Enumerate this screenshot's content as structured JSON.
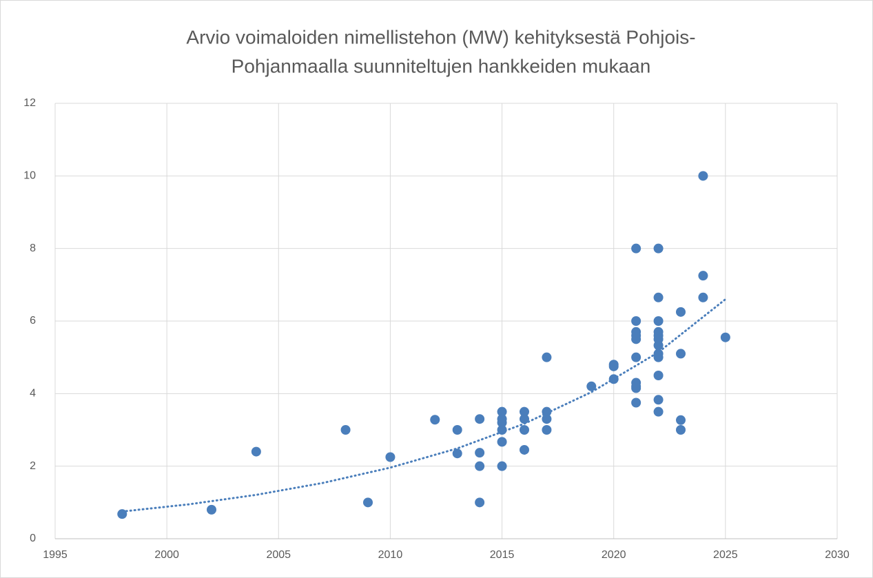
{
  "chart_data": {
    "type": "scatter",
    "title": [
      "Arvio voimaloiden nimellistehon (MW) kehityksestä Pohjois-",
      "Pohjanmaalla suunniteltujen hankkeiden mukaan"
    ],
    "series": [
      {
        "color": "#4a7ebb",
        "x": [
          1998,
          2002,
          2004,
          2008,
          2009,
          2010,
          2012,
          2013,
          2013,
          2014,
          2014,
          2014,
          2014,
          2015,
          2015,
          2015,
          2015,
          2015,
          2015,
          2016,
          2016,
          2016,
          2016,
          2017,
          2017,
          2017,
          2017,
          2019,
          2020,
          2020,
          2020,
          2021,
          2021,
          2021,
          2021,
          2021,
          2021,
          2021,
          2021,
          2021,
          2021,
          2022,
          2022,
          2022,
          2022,
          2022,
          2022,
          2022,
          2022,
          2022,
          2022,
          2022,
          2022,
          2023,
          2023,
          2023,
          2023,
          2024,
          2024,
          2024,
          2025
        ],
        "values": [
          0.68,
          0.8,
          2.4,
          3.0,
          1.0,
          2.25,
          3.28,
          3.0,
          2.35,
          3.3,
          2.37,
          2.0,
          1.0,
          3.5,
          3.3,
          3.2,
          3.0,
          2.67,
          2.0,
          3.5,
          3.3,
          3.0,
          2.45,
          5.0,
          3.5,
          3.3,
          3.0,
          4.2,
          4.8,
          4.75,
          4.4,
          8.0,
          6.0,
          5.7,
          5.6,
          5.5,
          5.0,
          4.3,
          4.2,
          4.15,
          3.75,
          8.0,
          6.65,
          6.0,
          5.7,
          5.6,
          5.5,
          5.33,
          5.1,
          5.0,
          4.5,
          3.83,
          3.5,
          6.25,
          5.1,
          3.27,
          3.0,
          10.0,
          7.25,
          6.65,
          5.55
        ]
      }
    ],
    "trendline": {
      "color": "#4a7ebb",
      "x": [
        1998,
        2001,
        2004,
        2007,
        2010,
        2013,
        2016,
        2019,
        2022,
        2025
      ],
      "values": [
        0.75,
        0.95,
        1.21,
        1.54,
        1.96,
        2.49,
        3.17,
        4.04,
        5.14,
        6.6
      ]
    },
    "xlim": [
      1995,
      2030
    ],
    "xticks": [
      1995,
      2000,
      2005,
      2010,
      2015,
      2020,
      2025,
      2030
    ],
    "ylim": [
      0,
      12
    ],
    "yticks": [
      0,
      2,
      4,
      6,
      8,
      10,
      12
    ],
    "grid": true
  }
}
